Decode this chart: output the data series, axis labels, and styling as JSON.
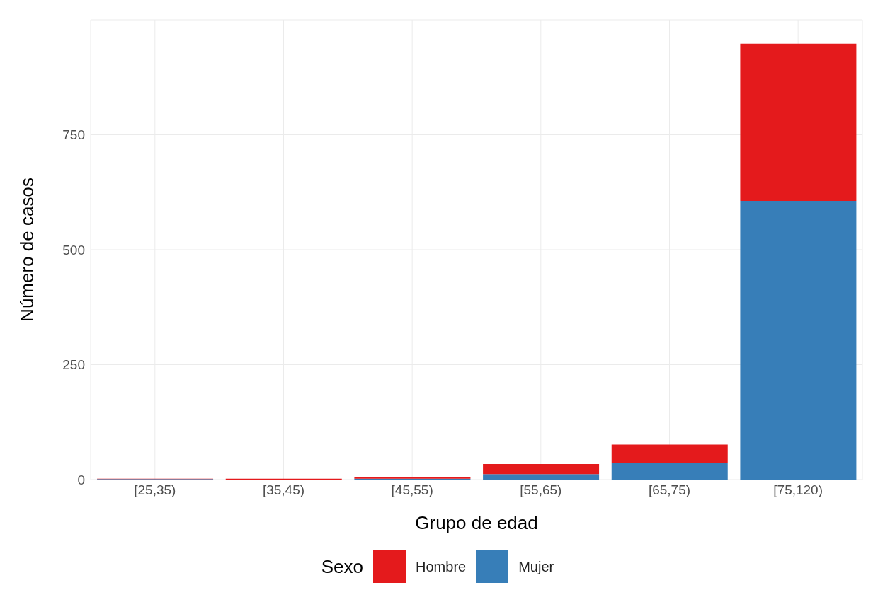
{
  "chart_data": {
    "type": "bar",
    "stacked": true,
    "xlabel": "Grupo de edad",
    "ylabel": "Número de casos",
    "legend_title": "Sexo",
    "legend": "bottom",
    "grid": true,
    "categories": [
      "[25,35)",
      "[35,45)",
      "[45,55)",
      "[55,65)",
      "[65,75)",
      "[75,120)"
    ],
    "series": [
      {
        "name": "Mujer",
        "color": "#377eb8",
        "values": [
          1,
          0,
          2,
          12,
          36,
          606
        ]
      },
      {
        "name": "Hombre",
        "color": "#e41a1c",
        "values": [
          1,
          2,
          4,
          22,
          40,
          342
        ]
      }
    ],
    "ylim": [
      0,
      1000
    ],
    "yticks": [
      0,
      250,
      500,
      750
    ]
  }
}
